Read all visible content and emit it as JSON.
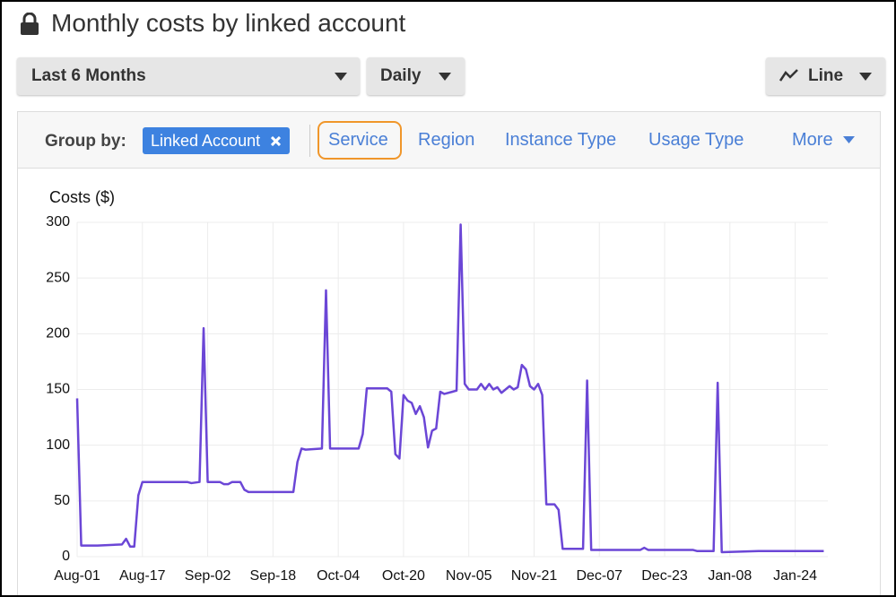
{
  "header": {
    "title": "Monthly costs by linked account"
  },
  "toolbar": {
    "range": "Last 6 Months",
    "granularity": "Daily",
    "chart_style": "Line"
  },
  "group_by": {
    "label": "Group by:",
    "chip": "Linked Account",
    "options": [
      "Service",
      "Region",
      "Instance Type",
      "Usage Type",
      "More"
    ]
  },
  "chart_data": {
    "type": "line",
    "y_label": "Costs ($)",
    "x": [
      0,
      1,
      5,
      11,
      12,
      13,
      14,
      15,
      16,
      27,
      28,
      30,
      31,
      32,
      35,
      36,
      37,
      38,
      40,
      41,
      42,
      53,
      54,
      55,
      56,
      60,
      61,
      62,
      69,
      70,
      71,
      76,
      77,
      78,
      79,
      80,
      81,
      82,
      83,
      84,
      85,
      86,
      87,
      88,
      89,
      90,
      92,
      93,
      94,
      95,
      96,
      98,
      99,
      100,
      101,
      102,
      103,
      104,
      105,
      106,
      107,
      108,
      109,
      110,
      111,
      112,
      113,
      114,
      115,
      117,
      118,
      119,
      124,
      125,
      126,
      138,
      139,
      140,
      151,
      152,
      156,
      157,
      158,
      167,
      183
    ],
    "series": [
      {
        "color": "#6b46d6",
        "values": [
          142,
          10,
          10,
          11,
          16,
          9,
          9,
          55,
          67,
          67,
          66,
          67,
          205,
          67,
          67,
          65,
          65,
          67,
          67,
          60,
          58,
          58,
          85,
          97,
          96,
          97,
          239,
          97,
          97,
          110,
          151,
          151,
          148,
          92,
          88,
          145,
          140,
          138,
          128,
          135,
          125,
          98,
          113,
          115,
          148,
          146,
          148,
          149,
          298,
          155,
          150,
          150,
          155,
          150,
          155,
          150,
          152,
          147,
          150,
          153,
          150,
          152,
          172,
          168,
          153,
          150,
          155,
          145,
          47,
          47,
          42,
          7,
          7,
          158,
          6,
          6,
          8,
          6,
          6,
          5,
          5,
          156,
          4,
          5,
          5
        ]
      }
    ],
    "xlim": [
      0,
      184
    ],
    "xticks": [
      {
        "value": 0,
        "label": "Aug-01"
      },
      {
        "value": 16,
        "label": "Aug-17"
      },
      {
        "value": 32,
        "label": "Sep-02"
      },
      {
        "value": 48,
        "label": "Sep-18"
      },
      {
        "value": 64,
        "label": "Oct-04"
      },
      {
        "value": 80,
        "label": "Oct-20"
      },
      {
        "value": 96,
        "label": "Nov-05"
      },
      {
        "value": 112,
        "label": "Nov-21"
      },
      {
        "value": 128,
        "label": "Dec-07"
      },
      {
        "value": 144,
        "label": "Dec-23"
      },
      {
        "value": 160,
        "label": "Jan-08"
      },
      {
        "value": 176,
        "label": "Jan-24"
      }
    ],
    "ylim": [
      0,
      300
    ],
    "yticks": [
      0,
      50,
      100,
      150,
      200,
      250,
      300
    ],
    "grid": true
  }
}
